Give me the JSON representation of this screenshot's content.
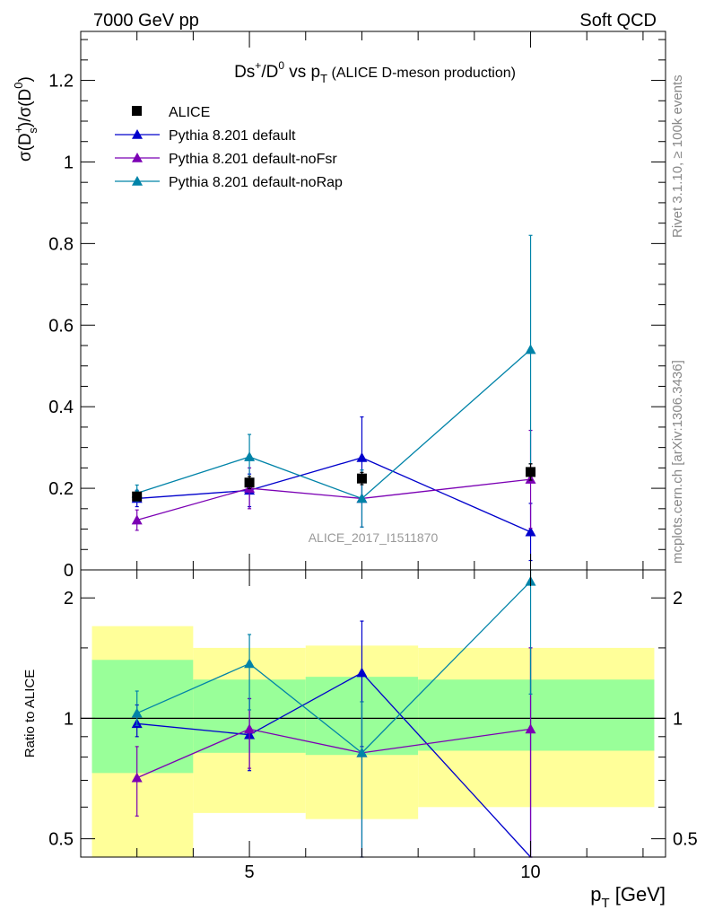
{
  "header": {
    "left": "7000 GeV pp",
    "right": "Soft QCD"
  },
  "side_labels": {
    "rivet": "Rivet 3.1.10, ≥ 100k events",
    "mcplots": "mcplots.cern.ch [arXiv:1306.3436]"
  },
  "colors": {
    "alice": "#000000",
    "default": "#0000cc",
    "noFsr": "#7b00b4",
    "noRap": "#0083a8",
    "band_inner": "#99ff99",
    "band_outer": "#ffff99"
  },
  "chart_data": [
    {
      "type": "line",
      "panel": "main",
      "title": "Ds⁺/D⁰ vs p_T (ALICE D-meson production)",
      "title_main": "Ds",
      "title_sup1": "+",
      "title_mid": "/D",
      "title_sup2": "0",
      "title_vs": " vs p",
      "title_sub": "T",
      "title_paren": " (ALICE D-meson production)",
      "ylabel": "σ(D_s⁺)/σ(D⁰)",
      "ylabel_sigma1": "σ(D",
      "ylabel_sub": "s",
      "ylabel_sup": "+",
      "ylabel_mid": ")/σ(D",
      "ylabel_sup2": "0",
      "ylabel_end": ")",
      "watermark": "ALICE_2017_I1511870",
      "xlim": [
        2,
        12.4
      ],
      "ylim": [
        0,
        1.32
      ],
      "yticks": [
        0,
        0.2,
        0.4,
        0.6,
        0.8,
        1,
        1.2
      ],
      "ytick_labels": [
        "0",
        "0.2",
        "0.4",
        "0.6",
        "0.8",
        "1",
        "1.2"
      ],
      "legend_position": "top-left",
      "series": [
        {
          "name": "ALICE",
          "key": "alice",
          "marker": "square",
          "x": [
            3,
            5,
            7,
            10
          ],
          "y": [
            0.18,
            0.214,
            0.224,
            0.24
          ],
          "yerr": [
            0.01,
            0.015,
            0.015,
            0.02
          ]
        },
        {
          "name": "Pythia 8.201 default",
          "key": "default",
          "marker": "triangle",
          "x": [
            3,
            5,
            7,
            10
          ],
          "y": [
            0.175,
            0.195,
            0.275,
            0.093
          ],
          "yerr": [
            0.02,
            0.04,
            0.1,
            0.07
          ]
        },
        {
          "name": "Pythia 8.201 default-noFsr",
          "key": "noFsr",
          "marker": "triangle",
          "x": [
            3,
            5,
            7,
            10
          ],
          "y": [
            0.122,
            0.2,
            0.175,
            0.222
          ],
          "yerr": [
            0.025,
            0.05,
            0.07,
            0.12
          ]
        },
        {
          "name": "Pythia 8.201 default-noRap",
          "key": "noRap",
          "marker": "triangle",
          "x": [
            3,
            5,
            7,
            10
          ],
          "y": [
            0.188,
            0.277,
            0.175,
            0.54
          ],
          "yerr": [
            0.02,
            0.055,
            0.07,
            0.28
          ]
        }
      ]
    },
    {
      "type": "line",
      "panel": "ratio",
      "ylabel": "Ratio to ALICE",
      "xlabel": "p_T [GeV]",
      "xlabel_p": "p",
      "xlabel_sub": "T",
      "xlabel_unit": " [GeV]",
      "xlim": [
        2,
        12.4
      ],
      "ylim": [
        0.45,
        2.35
      ],
      "log_y": true,
      "xticks": [
        5,
        10
      ],
      "xtick_labels": [
        "5",
        "10"
      ],
      "yticks": [
        0.5,
        1,
        2
      ],
      "ytick_labels": [
        "0.5",
        "1",
        "2"
      ],
      "bands": [
        {
          "x0": 2.2,
          "x1": 4.0,
          "inner": [
            0.73,
            1.4
          ],
          "outer": [
            0.4,
            1.7
          ]
        },
        {
          "x0": 4.0,
          "x1": 6.0,
          "inner": [
            0.82,
            1.25
          ],
          "outer": [
            0.58,
            1.5
          ]
        },
        {
          "x0": 6.0,
          "x1": 8.0,
          "inner": [
            0.81,
            1.27
          ],
          "outer": [
            0.56,
            1.52
          ]
        },
        {
          "x0": 8.0,
          "x1": 12.2,
          "inner": [
            0.83,
            1.25
          ],
          "outer": [
            0.6,
            1.5
          ]
        }
      ],
      "series": [
        {
          "key": "default",
          "x": [
            3,
            5,
            7,
            10
          ],
          "y": [
            0.97,
            0.91,
            1.3,
            0.35
          ],
          "ylo": [
            0.9,
            0.74,
            0.85,
            0.35
          ],
          "yhi": [
            1.08,
            1.12,
            1.75,
            1.5
          ]
        },
        {
          "key": "noFsr",
          "x": [
            3,
            5,
            7,
            10
          ],
          "y": [
            0.71,
            0.94,
            0.82,
            0.94
          ],
          "ylo": [
            0.57,
            0.75,
            0.45,
            0.4
          ],
          "yhi": [
            0.85,
            1.12,
            1.1,
            1.5
          ]
        },
        {
          "key": "noRap",
          "x": [
            3,
            5,
            7,
            10
          ],
          "y": [
            1.03,
            1.37,
            0.82,
            2.2
          ],
          "ylo": [
            0.96,
            1.05,
            0.45,
            1.15
          ],
          "yhi": [
            1.17,
            1.62,
            1.1,
            2.35
          ]
        }
      ]
    }
  ]
}
